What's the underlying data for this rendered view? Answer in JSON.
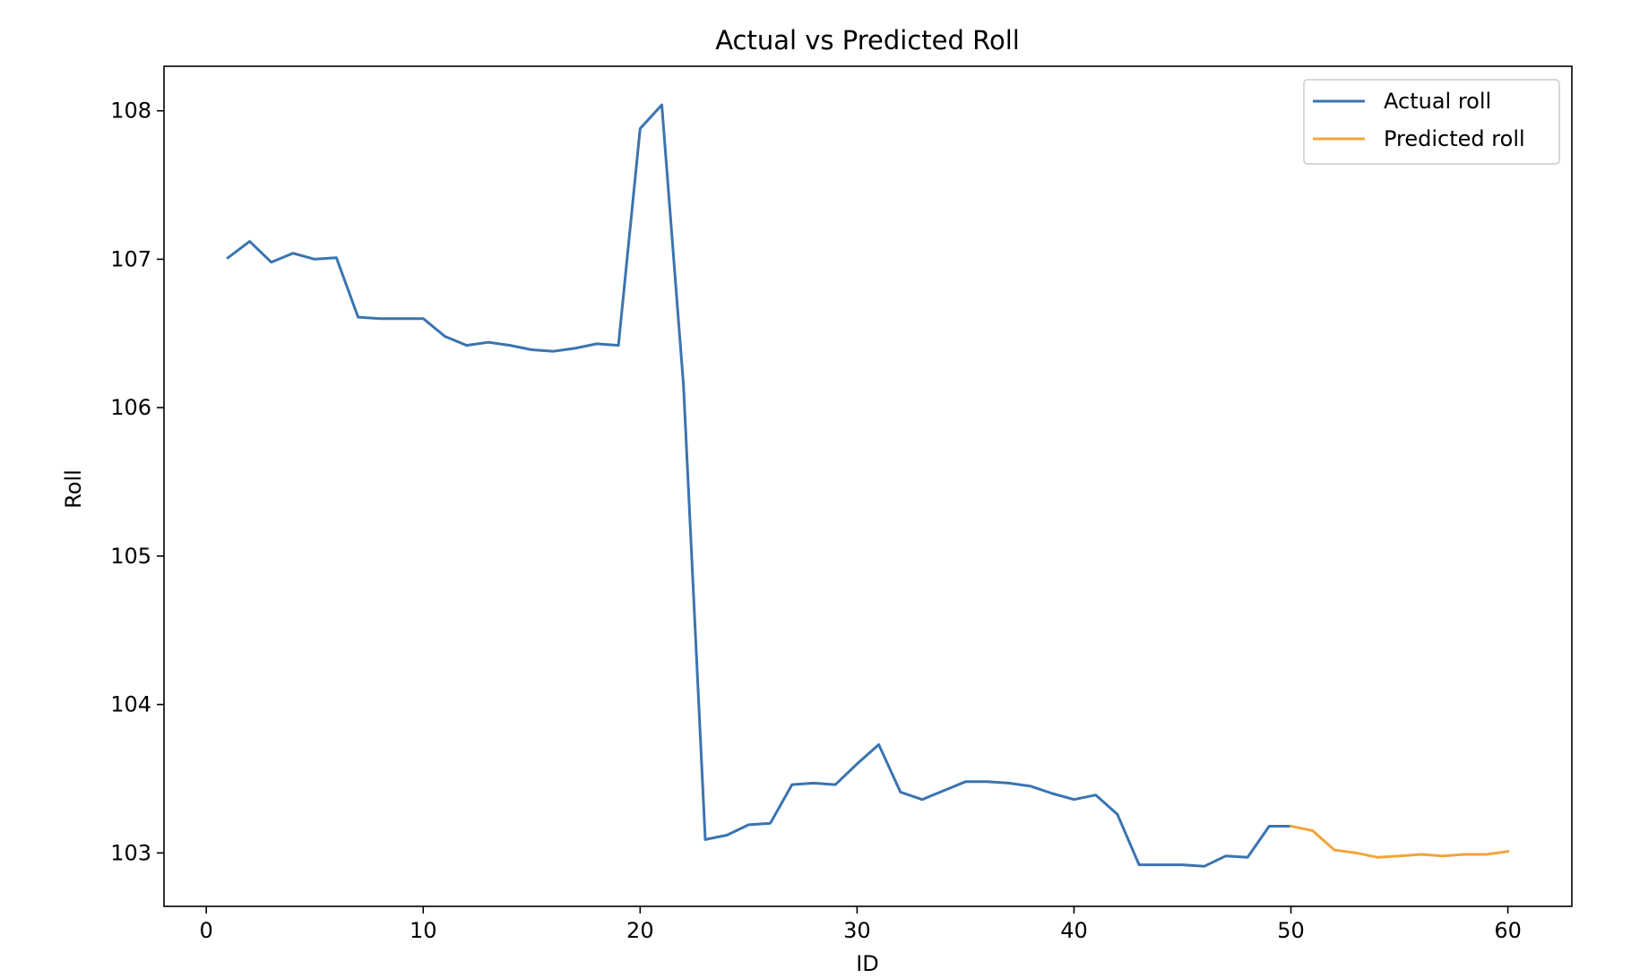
{
  "chart_data": {
    "type": "line",
    "title": "Actual vs Predicted Roll",
    "xlabel": "ID",
    "ylabel": "Roll",
    "xlim": [
      -1.95,
      62.95
    ],
    "ylim": [
      102.64,
      108.3
    ],
    "xticks": [
      0,
      10,
      20,
      30,
      40,
      50,
      60
    ],
    "yticks": [
      103,
      104,
      105,
      106,
      107,
      108
    ],
    "grid": false,
    "legend_position": "top-right",
    "series": [
      {
        "name": "Actual roll",
        "color": "#3a74b0",
        "x": [
          1,
          2,
          3,
          4,
          5,
          6,
          7,
          8,
          9,
          10,
          11,
          12,
          13,
          14,
          15,
          16,
          17,
          18,
          19,
          20,
          21,
          22,
          23,
          24,
          25,
          26,
          27,
          28,
          29,
          30,
          31,
          32,
          33,
          34,
          35,
          36,
          37,
          38,
          39,
          40,
          41,
          42,
          43,
          44,
          45,
          46,
          47,
          48,
          49,
          50
        ],
        "y": [
          107.01,
          107.12,
          106.98,
          107.04,
          107.0,
          107.01,
          106.61,
          106.6,
          106.6,
          106.6,
          106.48,
          106.42,
          106.44,
          106.42,
          106.39,
          106.38,
          106.4,
          106.43,
          106.42,
          107.88,
          108.04,
          106.15,
          103.09,
          103.12,
          103.19,
          103.2,
          103.46,
          103.47,
          103.46,
          103.6,
          103.73,
          103.41,
          103.36,
          103.42,
          103.48,
          103.48,
          103.47,
          103.45,
          103.4,
          103.36,
          103.39,
          103.26,
          102.92,
          102.92,
          102.92,
          102.91,
          102.98,
          102.97,
          103.18,
          103.18
        ]
      },
      {
        "name": "Predicted roll",
        "color": "#f4a43a",
        "x": [
          50,
          51,
          52,
          53,
          54,
          55,
          56,
          57,
          58,
          59,
          60
        ],
        "y": [
          103.18,
          103.15,
          103.02,
          103.0,
          102.97,
          102.98,
          102.99,
          102.98,
          102.99,
          102.99,
          103.01
        ]
      }
    ]
  }
}
